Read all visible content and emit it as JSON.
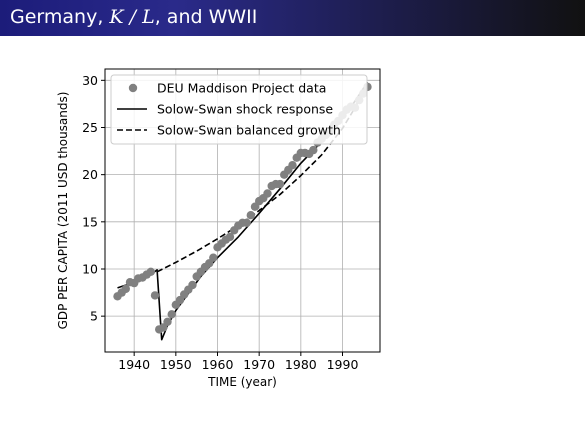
{
  "slide": {
    "title_prefix": "Germany, ",
    "title_math": "K / L",
    "title_suffix": ", and WWII"
  },
  "chart_data": {
    "type": "scatter",
    "title": "",
    "xlabel": "TIME (year)",
    "ylabel": "GDP PER CAPITA (2011 USD thousands)",
    "xlim": [
      1933,
      1999
    ],
    "ylim": [
      1.2,
      31.2
    ],
    "xticks": [
      1940,
      1950,
      1960,
      1970,
      1980,
      1990
    ],
    "yticks": [
      5,
      10,
      15,
      20,
      25,
      30
    ],
    "grid": true,
    "legend_position": "top-left",
    "series": [
      {
        "name": "DEU Maddison Project data",
        "kind": "scatter",
        "color": "#808080",
        "points": [
          [
            1936,
            7.1
          ],
          [
            1937,
            7.5
          ],
          [
            1938,
            7.9
          ],
          [
            1939,
            8.6
          ],
          [
            1940,
            8.5
          ],
          [
            1941,
            9.0
          ],
          [
            1942,
            9.1
          ],
          [
            1943,
            9.4
          ],
          [
            1944,
            9.7
          ],
          [
            1945,
            7.2
          ],
          [
            1946,
            3.6
          ],
          [
            1947,
            3.8
          ],
          [
            1948,
            4.4
          ],
          [
            1949,
            5.2
          ],
          [
            1950,
            6.2
          ],
          [
            1951,
            6.7
          ],
          [
            1952,
            7.3
          ],
          [
            1953,
            7.8
          ],
          [
            1954,
            8.3
          ],
          [
            1955,
            9.2
          ],
          [
            1956,
            9.7
          ],
          [
            1957,
            10.2
          ],
          [
            1958,
            10.6
          ],
          [
            1959,
            11.2
          ],
          [
            1960,
            12.3
          ],
          [
            1961,
            12.7
          ],
          [
            1962,
            13.1
          ],
          [
            1963,
            13.4
          ],
          [
            1964,
            14.1
          ],
          [
            1965,
            14.6
          ],
          [
            1966,
            14.9
          ],
          [
            1967,
            14.9
          ],
          [
            1968,
            15.7
          ],
          [
            1969,
            16.6
          ],
          [
            1970,
            17.2
          ],
          [
            1971,
            17.5
          ],
          [
            1972,
            18.0
          ],
          [
            1973,
            18.8
          ],
          [
            1974,
            19.0
          ],
          [
            1975,
            19.0
          ],
          [
            1976,
            20.0
          ],
          [
            1977,
            20.5
          ],
          [
            1978,
            21.0
          ],
          [
            1979,
            21.8
          ],
          [
            1980,
            22.3
          ],
          [
            1981,
            22.3
          ],
          [
            1982,
            22.2
          ],
          [
            1983,
            22.6
          ],
          [
            1984,
            23.4
          ],
          [
            1985,
            23.8
          ],
          [
            1986,
            24.2
          ],
          [
            1987,
            24.6
          ],
          [
            1988,
            25.3
          ],
          [
            1989,
            25.7
          ],
          [
            1990,
            26.3
          ],
          [
            1991,
            26.9
          ],
          [
            1992,
            27.2
          ],
          [
            1993,
            27.1
          ],
          [
            1994,
            27.9
          ],
          [
            1995,
            28.6
          ],
          [
            1996,
            29.3
          ]
        ]
      },
      {
        "name": "Solow-Swan shock response",
        "kind": "line",
        "dash": "solid",
        "color": "#000000",
        "points": [
          [
            1936,
            8.0
          ],
          [
            1940,
            8.6
          ],
          [
            1944,
            9.4
          ],
          [
            1945.5,
            9.9
          ],
          [
            1946.6,
            2.5
          ],
          [
            1948,
            4.0
          ],
          [
            1950,
            5.6
          ],
          [
            1953,
            7.4
          ],
          [
            1956,
            9.2
          ],
          [
            1960,
            11.2
          ],
          [
            1965,
            13.4
          ],
          [
            1970,
            15.9
          ],
          [
            1975,
            18.5
          ],
          [
            1980,
            21.2
          ],
          [
            1985,
            23.5
          ],
          [
            1990,
            26.0
          ],
          [
            1993,
            27.8
          ],
          [
            1996,
            29.8
          ]
        ]
      },
      {
        "name": "Solow-Swan balanced growth",
        "kind": "line",
        "dash": "dashed",
        "color": "#000000",
        "points": [
          [
            1945.5,
            9.7
          ],
          [
            1950,
            10.7
          ],
          [
            1955,
            11.9
          ],
          [
            1960,
            13.2
          ],
          [
            1965,
            14.6
          ],
          [
            1970,
            16.2
          ],
          [
            1975,
            17.9
          ],
          [
            1980,
            19.9
          ],
          [
            1985,
            22.1
          ],
          [
            1990,
            24.9
          ],
          [
            1993,
            27.1
          ],
          [
            1996,
            29.6
          ]
        ]
      }
    ]
  }
}
